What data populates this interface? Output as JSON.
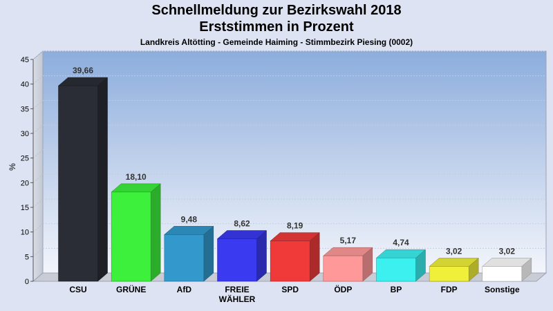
{
  "chart_data": {
    "type": "bar",
    "title": "Schnellmeldung zur Bezirkswahl 2018",
    "subtitle": "Erststimmen in Prozent",
    "caption": "Landkreis Altötting - Gemeinde Haiming - Stimmbezirk Piesing (0002)",
    "ylabel": "%",
    "xlabel": "",
    "ylim": [
      0,
      45
    ],
    "yticks": [
      0,
      5,
      10,
      15,
      20,
      25,
      30,
      35,
      40,
      45
    ],
    "grid": true,
    "categories": [
      "CSU",
      "GRÜNE",
      "AfD",
      "FREIE WÄHLER",
      "SPD",
      "ÖDP",
      "BP",
      "FDP",
      "Sonstige"
    ],
    "category_lines": [
      [
        "CSU"
      ],
      [
        "GRÜNE"
      ],
      [
        "AfD"
      ],
      [
        "FREIE",
        "WÄHLER"
      ],
      [
        "SPD"
      ],
      [
        "ÖDP"
      ],
      [
        "BP"
      ],
      [
        "FDP"
      ],
      [
        "Sonstige"
      ]
    ],
    "values": [
      39.66,
      18.1,
      9.48,
      8.62,
      8.19,
      5.17,
      4.74,
      3.02,
      3.02
    ],
    "value_labels": [
      "39,66",
      "18,10",
      "9,48",
      "8,62",
      "8,19",
      "5,17",
      "4,74",
      "3,02",
      "3,02"
    ],
    "colors": [
      "#2a2d35",
      "#3cf03c",
      "#3399cc",
      "#3a3af0",
      "#f03a3a",
      "#ff9999",
      "#3cf0f0",
      "#f0f03a",
      "#ffffff"
    ]
  }
}
